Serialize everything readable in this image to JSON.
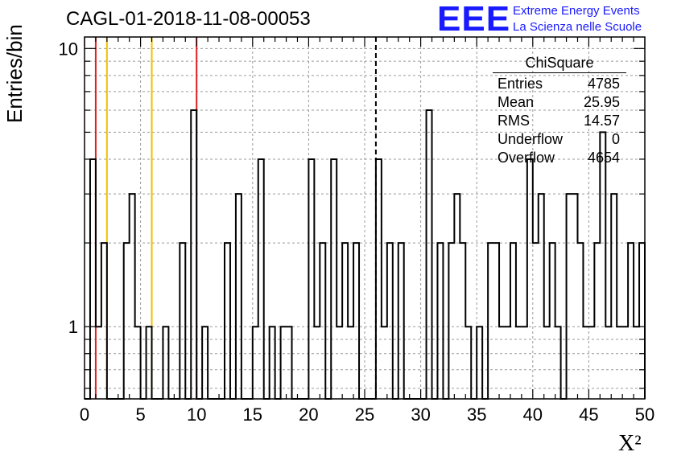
{
  "header": {
    "title": "CAGL-01-2018-11-08-00053"
  },
  "logo": {
    "mark": "EEE",
    "line1": "Extreme Energy Events",
    "line2": "La Scienza nelle Scuole"
  },
  "stats": {
    "title": "ChiSquare",
    "rows": [
      {
        "label": "Entries",
        "value": "4785"
      },
      {
        "label": "Mean",
        "value": "25.95"
      },
      {
        "label": "RMS",
        "value": "14.57"
      },
      {
        "label": "Underflow",
        "value": "0"
      },
      {
        "label": "Overflow",
        "value": "4654"
      }
    ]
  },
  "chart_data": {
    "type": "bar",
    "title": "CAGL-01-2018-11-08-00053",
    "xlabel": "X²",
    "ylabel": "Entries/bin",
    "xlim": [
      0,
      50
    ],
    "ylim": [
      0.55,
      11
    ],
    "log_y": true,
    "grid": true,
    "bin_width": 0.5,
    "x_ticks": [
      0,
      5,
      10,
      15,
      20,
      25,
      30,
      35,
      40,
      45,
      50
    ],
    "y_ticks": [
      1,
      10
    ],
    "bins": [
      [
        0.5,
        4
      ],
      [
        1.0,
        1
      ],
      [
        1.5,
        2
      ],
      [
        3.5,
        2
      ],
      [
        4.0,
        3
      ],
      [
        4.5,
        1
      ],
      [
        5.5,
        1
      ],
      [
        7.0,
        1
      ],
      [
        8.5,
        2
      ],
      [
        9.5,
        6
      ],
      [
        10.5,
        1
      ],
      [
        12.5,
        2
      ],
      [
        13.5,
        3
      ],
      [
        15.0,
        1
      ],
      [
        15.5,
        4
      ],
      [
        16.5,
        1
      ],
      [
        17.5,
        1
      ],
      [
        18.0,
        1
      ],
      [
        20.0,
        4
      ],
      [
        20.5,
        1
      ],
      [
        21.0,
        2
      ],
      [
        22.0,
        4
      ],
      [
        22.5,
        1
      ],
      [
        23.0,
        2
      ],
      [
        23.5,
        1
      ],
      [
        24.0,
        2
      ],
      [
        26.0,
        4
      ],
      [
        26.5,
        1
      ],
      [
        27.0,
        2
      ],
      [
        28.0,
        2
      ],
      [
        30.5,
        6
      ],
      [
        31.5,
        2
      ],
      [
        32.5,
        2
      ],
      [
        33.0,
        3
      ],
      [
        33.5,
        2
      ],
      [
        34.0,
        1
      ],
      [
        35.0,
        1
      ],
      [
        36.0,
        2
      ],
      [
        36.5,
        2
      ],
      [
        37.0,
        1
      ],
      [
        37.5,
        1
      ],
      [
        38.0,
        2
      ],
      [
        38.5,
        1
      ],
      [
        39.0,
        1
      ],
      [
        39.5,
        4
      ],
      [
        40.0,
        2
      ],
      [
        40.5,
        3
      ],
      [
        41.0,
        1
      ],
      [
        41.5,
        2
      ],
      [
        42.0,
        1
      ],
      [
        43.0,
        3
      ],
      [
        43.5,
        3
      ],
      [
        44.0,
        2
      ],
      [
        44.5,
        1
      ],
      [
        45.0,
        1
      ],
      [
        45.5,
        2
      ],
      [
        46.0,
        5
      ],
      [
        46.5,
        1
      ],
      [
        47.0,
        3
      ],
      [
        47.5,
        1
      ],
      [
        48.0,
        1
      ],
      [
        48.5,
        2
      ],
      [
        49.0,
        1
      ],
      [
        49.5,
        2
      ]
    ],
    "reference_lines": [
      {
        "x": 1,
        "color": "#e02020"
      },
      {
        "x": 2,
        "color": "#f0c000"
      },
      {
        "x": 6,
        "color": "#f0c000"
      },
      {
        "x": 10,
        "color": "#e02020"
      },
      {
        "x": 26,
        "color": "#000000",
        "dashed": true
      }
    ]
  }
}
